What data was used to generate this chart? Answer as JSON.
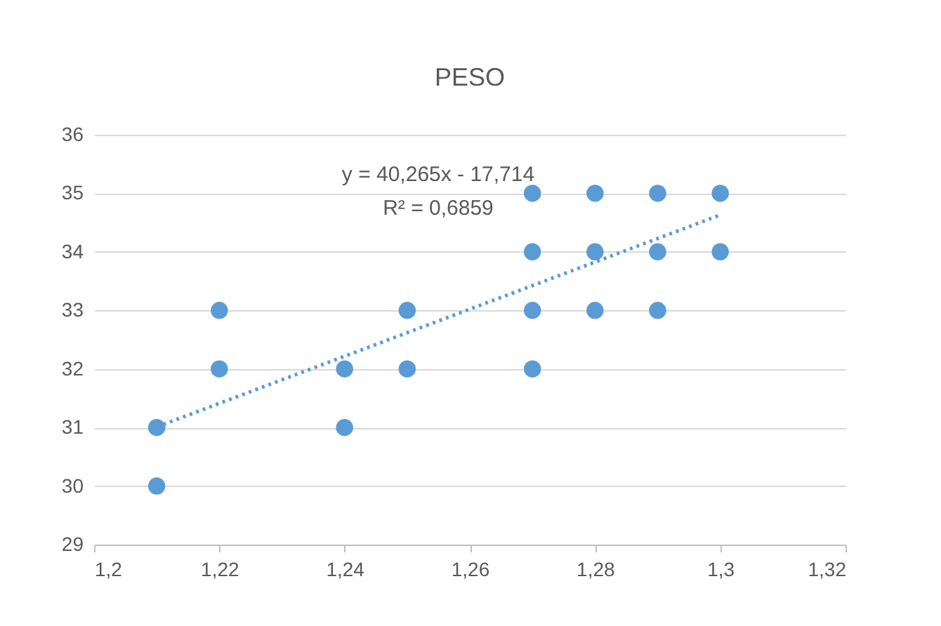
{
  "chart_data": {
    "type": "scatter",
    "title": "PESO",
    "marker": "circle",
    "grid": "y",
    "xlim": [
      1.2,
      1.32
    ],
    "xticks": [
      {
        "value": 1.2,
        "label": "1,2"
      },
      {
        "value": 1.22,
        "label": "1,22"
      },
      {
        "value": 1.24,
        "label": "1,24"
      },
      {
        "value": 1.26,
        "label": "1,26"
      },
      {
        "value": 1.28,
        "label": "1,28"
      },
      {
        "value": 1.3,
        "label": "1,3"
      },
      {
        "value": 1.32,
        "label": "1,32"
      }
    ],
    "ylim": [
      29,
      36
    ],
    "yticks": [
      29,
      30,
      31,
      32,
      33,
      34,
      35,
      36
    ],
    "series": [
      {
        "color": "#5b9bd5",
        "x": [
          1.21,
          1.21,
          1.22,
          1.22,
          1.24,
          1.24,
          1.25,
          1.25,
          1.27,
          1.27,
          1.27,
          1.27,
          1.28,
          1.28,
          1.28,
          1.29,
          1.29,
          1.29,
          1.3,
          1.3
        ],
        "values": [
          31,
          30,
          33,
          32,
          32,
          31,
          33,
          32,
          35,
          34,
          33,
          32,
          35,
          34,
          33,
          35,
          34,
          33,
          35,
          34
        ]
      },
      {
        "type": "line",
        "color": "#5b9bd5",
        "line_style": "dotted",
        "marker": "none",
        "x": [
          1.21,
          1.3
        ],
        "values": [
          31.01,
          34.63
        ]
      }
    ],
    "annotations": [
      "y = 40,265x - 17,714",
      "R² = 0,6859"
    ]
  }
}
